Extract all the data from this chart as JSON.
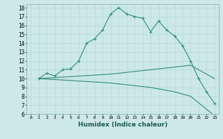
{
  "line1_x": [
    1,
    2,
    3,
    4,
    5,
    6,
    7,
    8,
    9,
    10,
    11,
    12,
    13,
    14,
    15,
    16,
    17,
    18,
    19,
    20,
    21,
    22,
    23
  ],
  "line1_y": [
    10,
    10.6,
    10.3,
    11.0,
    11.1,
    12.0,
    14.0,
    14.5,
    15.5,
    17.3,
    18.0,
    17.3,
    17.0,
    16.8,
    15.3,
    16.5,
    15.5,
    14.8,
    13.7,
    12.0,
    10.0,
    8.5,
    7.2
  ],
  "line2_x": [
    1,
    10,
    15,
    18,
    20,
    23
  ],
  "line2_y": [
    10,
    10.5,
    11.0,
    11.3,
    11.5,
    10.0
  ],
  "line3_x": [
    1,
    10,
    15,
    18,
    20,
    23
  ],
  "line3_y": [
    10,
    9.5,
    9.0,
    8.5,
    8.0,
    5.8
  ],
  "color": "#2e8b7a",
  "bg_color": "#cce8e8",
  "grid_color": "#b8d8d8",
  "xlabel": "Humidex (Indice chaleur)",
  "xlim": [
    -0.5,
    23.5
  ],
  "ylim": [
    6,
    18.4
  ],
  "yticks": [
    6,
    7,
    8,
    9,
    10,
    11,
    12,
    13,
    14,
    15,
    16,
    17,
    18
  ],
  "xticks": [
    0,
    1,
    2,
    3,
    4,
    5,
    6,
    7,
    8,
    9,
    10,
    11,
    12,
    13,
    14,
    15,
    16,
    17,
    18,
    19,
    20,
    21,
    22,
    23
  ]
}
